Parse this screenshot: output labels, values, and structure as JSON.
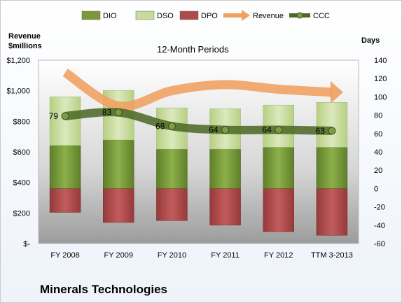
{
  "company": "Minerals Technologies",
  "chart_data": {
    "type": "bar",
    "title": "12-Month Periods",
    "y_left_label": "Revenue\n$millions",
    "y_right_label": "Days",
    "categories": [
      "FY 2008",
      "FY 2009",
      "FY 2010",
      "FY 2011",
      "FY 2012",
      "TTM 3-2013"
    ],
    "y_left": {
      "ticks": [
        "$-",
        "$200",
        "$400",
        "$600",
        "$800",
        "$1,000",
        "$1,200"
      ],
      "range": [
        0,
        1200
      ]
    },
    "y_right": {
      "ticks": [
        "-60",
        "-40",
        "-20",
        "0",
        "20",
        "40",
        "60",
        "80",
        "100",
        "120",
        "140"
      ],
      "range": [
        -60,
        140
      ]
    },
    "legend_position": "top",
    "legend": [
      {
        "name": "DIO",
        "kind": "bar",
        "color": "#7a9a3a"
      },
      {
        "name": "DSO",
        "kind": "bar",
        "color": "#c7dc9c"
      },
      {
        "name": "DPO",
        "kind": "bar",
        "color": "#b04b4b"
      },
      {
        "name": "Revenue",
        "kind": "arrow",
        "color": "#f0a060"
      },
      {
        "name": "CCC",
        "kind": "line",
        "color": "#4f6a28"
      }
    ],
    "series": [
      {
        "name": "DIO",
        "axis": "days",
        "stack": "positive",
        "values": [
          47,
          53,
          43,
          43,
          45,
          45
        ]
      },
      {
        "name": "DSO",
        "axis": "days",
        "stack": "positive",
        "values": [
          53,
          54,
          45,
          44,
          46,
          49
        ]
      },
      {
        "name": "DPO",
        "axis": "days",
        "stack": "negative",
        "values": [
          -26,
          -37,
          -35,
          -40,
          -47,
          -51
        ]
      },
      {
        "name": "Revenue",
        "axis": "revenue",
        "values": [
          1120,
          900,
          1000,
          1040,
          1010,
          990
        ]
      },
      {
        "name": "CCC",
        "axis": "days",
        "values": [
          79,
          83,
          68,
          64,
          64,
          63
        ]
      }
    ]
  }
}
